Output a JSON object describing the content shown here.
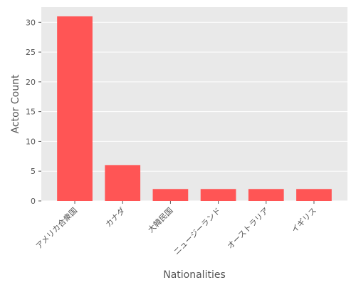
{
  "chart_data": {
    "type": "bar",
    "title": "",
    "xlabel": "Nationalities",
    "ylabel": "Actor Count",
    "categories": [
      "アメリカ合衆国",
      "カナダ",
      "大韓民国",
      "ニュージーランド",
      "オーストラリア",
      "イギリス"
    ],
    "values": [
      31,
      6,
      2,
      2,
      2,
      2
    ],
    "ylim": [
      0,
      32.55
    ],
    "yticks": [
      0,
      5,
      10,
      15,
      20,
      25,
      30
    ],
    "grid": true,
    "legend": "none",
    "colors": {
      "bar": "#ff5555",
      "background": "#e9e9e9",
      "grid": "#ffffff",
      "text": "#555555"
    }
  }
}
